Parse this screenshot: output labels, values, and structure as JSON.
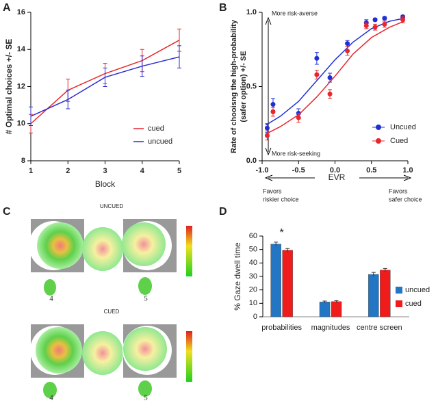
{
  "panels": [
    "A",
    "B",
    "C",
    "D"
  ],
  "heatmaps": {
    "groups": [
      {
        "title": "UNCUED",
        "labels": [
          "4",
          "5"
        ]
      },
      {
        "title": "CUED",
        "labels": [
          "4",
          "5"
        ]
      }
    ]
  },
  "chart_data": [
    {
      "type": "line",
      "xlabel": "Block",
      "ylabel": "# Optimal choices +/- SE",
      "x": [
        1,
        2,
        3,
        4,
        5
      ],
      "xlim": [
        1,
        5
      ],
      "xticks": [
        1,
        2,
        3,
        4,
        5
      ],
      "ylim": [
        8,
        16
      ],
      "yticks": [
        8,
        10,
        12,
        14,
        16
      ],
      "legend": "lower right",
      "series": [
        {
          "name": "cued",
          "color": "#e8262b",
          "values": [
            10.0,
            11.8,
            12.7,
            13.4,
            14.5
          ],
          "errors": [
            0.5,
            0.6,
            0.55,
            0.6,
            0.6
          ]
        },
        {
          "name": "uncued",
          "color": "#2b2bd0",
          "values": [
            10.4,
            11.3,
            12.5,
            13.1,
            13.6
          ],
          "errors": [
            0.5,
            0.5,
            0.5,
            0.55,
            0.6
          ]
        }
      ]
    },
    {
      "type": "scatter",
      "xlabel": "EVR",
      "ylabel": [
        "Rate of chooisng the high-probability",
        "(safer option) +/- SE"
      ],
      "annotations": {
        "top": "More risk-averse",
        "bottom": "More risk-seeking",
        "left": [
          "Favors",
          "riskier choice"
        ],
        "right": [
          "Favors",
          "safer choice"
        ]
      },
      "xlim": [
        -1,
        1
      ],
      "xticks": [
        {
          "value": -1,
          "label": "-1.0"
        },
        {
          "value": -0.5,
          "label": "-0.5"
        },
        {
          "value": 0,
          "label": "0.0"
        },
        {
          "value": 0.5,
          "label": "0.5"
        },
        {
          "value": 1,
          "label": "1.0"
        }
      ],
      "ylim": [
        0,
        1
      ],
      "yticks": [
        {
          "value": 0,
          "label": "0.0"
        },
        {
          "value": 0.5,
          "label": "0.5"
        },
        {
          "value": 1,
          "label": "1.0"
        }
      ],
      "legend": "lower right",
      "x": [
        -0.93,
        -0.85,
        -0.5,
        -0.25,
        -0.07,
        0.17,
        0.43,
        0.55,
        0.68,
        0.93
      ],
      "fit_x": [
        -0.95,
        -0.75,
        -0.5,
        -0.25,
        0,
        0.25,
        0.5,
        0.75,
        0.95
      ],
      "series": [
        {
          "name": "Uncued",
          "color": "#1f2fd6",
          "values": [
            0.22,
            0.38,
            0.32,
            0.69,
            0.56,
            0.79,
            0.93,
            0.95,
            0.96,
            0.97
          ],
          "errors": [
            0.03,
            0.04,
            0.03,
            0.04,
            0.03,
            0.02,
            0.02,
            0.01,
            0.01,
            0.01
          ],
          "fit_values": [
            0.24,
            0.3,
            0.4,
            0.54,
            0.68,
            0.8,
            0.89,
            0.94,
            0.96
          ]
        },
        {
          "name": "Cued",
          "color": "#e8262b",
          "values": [
            0.17,
            0.33,
            0.29,
            0.58,
            0.45,
            0.74,
            0.91,
            0.9,
            0.92,
            0.95
          ],
          "errors": [
            0.03,
            0.03,
            0.03,
            0.03,
            0.03,
            0.03,
            0.02,
            0.02,
            0.02,
            0.02
          ],
          "fit_values": [
            0.18,
            0.23,
            0.31,
            0.43,
            0.57,
            0.72,
            0.83,
            0.9,
            0.94
          ]
        }
      ]
    },
    {
      "type": "bar",
      "ylabel": "% Gaze dwell time",
      "categories": [
        "probabilities",
        "magnitudes",
        "centre screen"
      ],
      "ylim": [
        0,
        60
      ],
      "yticks": [
        0,
        10,
        20,
        30,
        40,
        50,
        60
      ],
      "legend": "right",
      "annotations": [
        {
          "category": 0,
          "text": "*"
        }
      ],
      "series": [
        {
          "name": "uncued",
          "color": "#2276c4",
          "values": [
            54,
            11,
            31.5
          ],
          "errors": [
            1.5,
            0.7,
            1.5
          ]
        },
        {
          "name": "cued",
          "color": "#f01c1c",
          "values": [
            49.5,
            11.3,
            34.7
          ],
          "errors": [
            1.2,
            0.7,
            1.2
          ]
        }
      ]
    }
  ]
}
